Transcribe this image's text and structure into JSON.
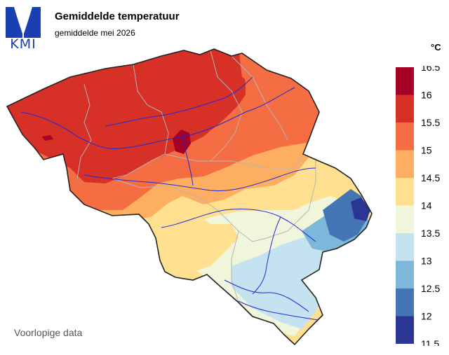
{
  "header": {
    "logo_text": "KMI",
    "title": "Gemiddelde temperatuur",
    "subtitle": "gemiddelde mei 2026"
  },
  "legend": {
    "unit": "°C",
    "ticks": [
      "16.5",
      "16",
      "15.5",
      "15",
      "14.5",
      "14",
      "13.5",
      "13",
      "12.5",
      "12",
      "11.5"
    ],
    "colors": [
      "#a50026",
      "#d73027",
      "#f46d43",
      "#fdae61",
      "#fee090",
      "#f0f6dc",
      "#c4e2f0",
      "#7db7da",
      "#4575b4",
      "#2b3594"
    ]
  },
  "footer": {
    "note": "Voorlopige data"
  }
}
